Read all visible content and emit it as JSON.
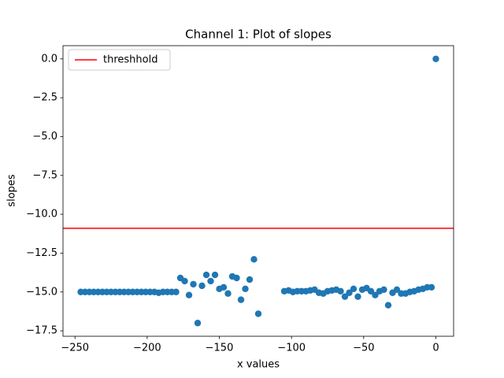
{
  "chart_data": {
    "type": "scatter",
    "title": "Channel 1: Plot of slopes",
    "x_label": "x values",
    "y_label": "slopes",
    "color": "#1f77b4",
    "x": [
      -246,
      -243,
      -240,
      -237,
      -234,
      -231,
      -228,
      -225,
      -222,
      -219,
      -216,
      -213,
      -210,
      -207,
      -204,
      -201,
      -198,
      -195,
      -192,
      -189,
      -186,
      -183,
      -180,
      -177,
      -174,
      -171,
      -168,
      -165,
      -162,
      -159,
      -156,
      -153,
      -150,
      -147,
      -144,
      -141,
      -138,
      -135,
      -132,
      -129,
      -126,
      -123,
      -105,
      -102,
      -99,
      -96,
      -93,
      -90,
      -87,
      -84,
      -81,
      -78,
      -75,
      -72,
      -69,
      -66,
      -63,
      -60,
      -57,
      -54,
      -51,
      -48,
      -45,
      -42,
      -39,
      -36,
      -33,
      -30,
      -27,
      -24,
      -21,
      -18,
      -15,
      -12,
      -9,
      -6,
      -3,
      0
    ],
    "y": [
      -15.0,
      -15.0,
      -15.0,
      -15.0,
      -15.0,
      -15.0,
      -15.0,
      -15.0,
      -15.0,
      -15.0,
      -15.0,
      -15.0,
      -15.0,
      -15.0,
      -15.0,
      -15.0,
      -15.0,
      -15.0,
      -15.05,
      -15.0,
      -15.0,
      -15.0,
      -15.0,
      -14.1,
      -14.3,
      -15.2,
      -14.5,
      -17.0,
      -14.6,
      -13.9,
      -14.3,
      -13.9,
      -14.8,
      -14.7,
      -15.1,
      -14.0,
      -14.1,
      -15.5,
      -14.8,
      -14.2,
      -12.9,
      -16.4,
      -14.95,
      -14.9,
      -15.0,
      -14.95,
      -14.95,
      -14.95,
      -14.9,
      -14.85,
      -15.05,
      -15.1,
      -14.95,
      -14.9,
      -14.85,
      -14.95,
      -15.3,
      -15.05,
      -14.8,
      -15.3,
      -14.85,
      -14.75,
      -14.95,
      -15.2,
      -14.95,
      -14.85,
      -15.85,
      -15.05,
      -14.85,
      -15.1,
      -15.1,
      -15.0,
      -14.95,
      -14.85,
      -14.8,
      -14.7,
      -14.7,
      0.0
    ],
    "hlines": [
      {
        "name": "threshhold",
        "y": -10.9,
        "color": "red"
      }
    ],
    "legend": "upper left",
    "xlim": [
      -258.3,
      12.3
    ],
    "xticks": [
      {
        "value": -250,
        "label": "−250"
      },
      {
        "value": -200,
        "label": "−200"
      },
      {
        "value": -150,
        "label": "−150"
      },
      {
        "value": -100,
        "label": "−100"
      },
      {
        "value": -50,
        "label": "−50"
      },
      0
    ],
    "ylim": [
      -17.85,
      0.85
    ],
    "yticks": [
      {
        "value": 0,
        "label": "0.0"
      },
      {
        "value": -2.5,
        "label": "−2.5"
      },
      {
        "value": -5,
        "label": "−5.0"
      },
      {
        "value": -7.5,
        "label": "−7.5"
      },
      {
        "value": -10,
        "label": "−10.0"
      },
      {
        "value": -12.5,
        "label": "−12.5"
      },
      {
        "value": -15,
        "label": "−15.0"
      },
      {
        "value": -17.5,
        "label": "−17.5"
      }
    ]
  }
}
